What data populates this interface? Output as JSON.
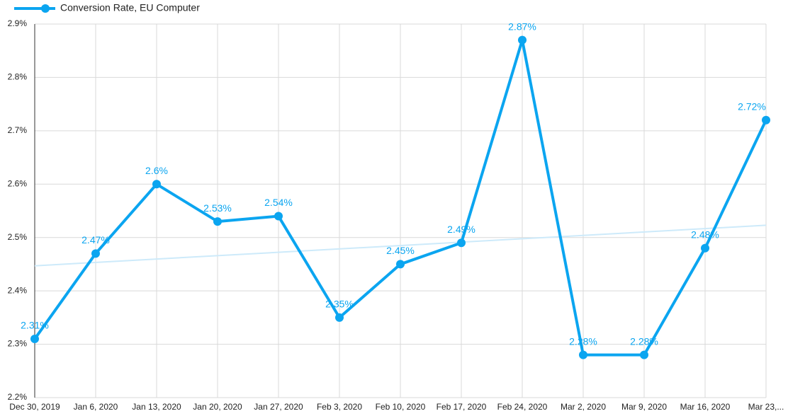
{
  "chart_data": {
    "type": "line",
    "categories": [
      "Dec 30, 2019",
      "Jan 6, 2020",
      "Jan 13, 2020",
      "Jan 20, 2020",
      "Jan 27, 2020",
      "Feb 3, 2020",
      "Feb 10, 2020",
      "Feb 17, 2020",
      "Feb 24, 2020",
      "Mar 2, 2020",
      "Mar 9, 2020",
      "Mar 16, 2020",
      "Mar 23,..."
    ],
    "series": [
      {
        "name": "Conversion Rate, EU Computer",
        "color": "#0ba5f0",
        "values": [
          2.31,
          2.47,
          2.6,
          2.53,
          2.54,
          2.35,
          2.45,
          2.49,
          2.87,
          2.28,
          2.28,
          2.48,
          2.72
        ],
        "value_labels": [
          "2.31%",
          "2.47%",
          "2.6%",
          "2.53%",
          "2.54%",
          "2.35%",
          "2.45%",
          "2.49%",
          "2.87%",
          "2.28%",
          "2.28%",
          "2.48%",
          "2.72%"
        ],
        "trendline": {
          "start": 2.447,
          "end": 2.523,
          "color": "#cdeafa"
        }
      }
    ],
    "ylim": [
      2.2,
      2.9
    ],
    "yticks": [
      {
        "value": 2.2,
        "label": "2.2%"
      },
      {
        "value": 2.3,
        "label": "2.3%"
      },
      {
        "value": 2.4,
        "label": "2.4%"
      },
      {
        "value": 2.5,
        "label": "2.5%"
      },
      {
        "value": 2.6,
        "label": "2.6%"
      },
      {
        "value": 2.7,
        "label": "2.7%"
      },
      {
        "value": 2.8,
        "label": "2.8%"
      },
      {
        "value": 2.9,
        "label": "2.9%"
      }
    ],
    "grid": true,
    "legend": "top-left"
  }
}
